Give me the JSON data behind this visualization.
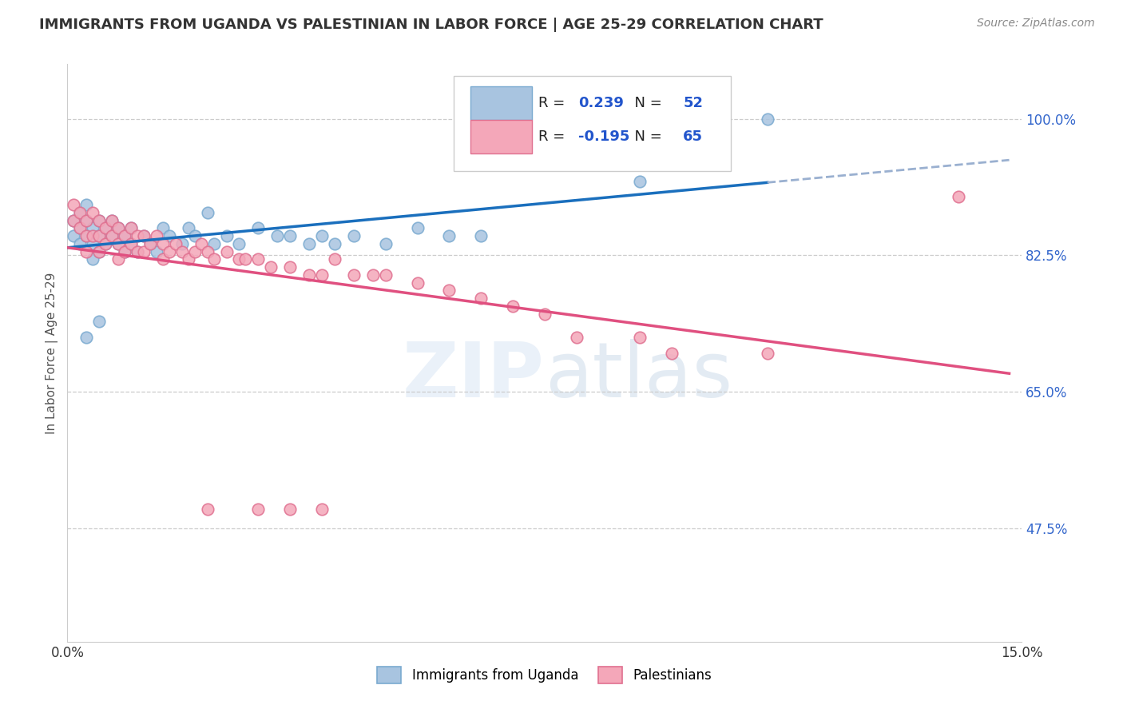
{
  "title": "IMMIGRANTS FROM UGANDA VS PALESTINIAN IN LABOR FORCE | AGE 25-29 CORRELATION CHART",
  "source": "Source: ZipAtlas.com",
  "ylabel": "In Labor Force | Age 25-29",
  "xlim": [
    0.0,
    0.15
  ],
  "ylim": [
    0.33,
    1.07
  ],
  "ytick_positions": [
    0.475,
    0.65,
    0.825,
    1.0
  ],
  "ytick_labels": [
    "47.5%",
    "65.0%",
    "82.5%",
    "100.0%"
  ],
  "R_uganda": 0.239,
  "N_uganda": 52,
  "R_palestinian": -0.195,
  "N_palestinian": 65,
  "color_uganda": "#a8c4e0",
  "color_uganda_edge": "#7aaad0",
  "color_palestinian": "#f4a7b9",
  "color_palestinian_edge": "#e07090",
  "trendline_uganda_color": "#1a6fbd",
  "trendline_palestinian_color": "#e05080",
  "trendline_dashed_color": "#9ab0d0",
  "uganda_x": [
    0.001,
    0.001,
    0.002,
    0.002,
    0.002,
    0.003,
    0.003,
    0.003,
    0.004,
    0.004,
    0.004,
    0.005,
    0.005,
    0.005,
    0.006,
    0.006,
    0.007,
    0.007,
    0.008,
    0.008,
    0.009,
    0.009,
    0.01,
    0.01,
    0.011,
    0.012,
    0.013,
    0.014,
    0.015,
    0.016,
    0.018,
    0.019,
    0.02,
    0.022,
    0.023,
    0.025,
    0.027,
    0.03,
    0.033,
    0.035,
    0.038,
    0.04,
    0.042,
    0.045,
    0.05,
    0.055,
    0.06,
    0.065,
    0.003,
    0.005,
    0.09,
    0.11
  ],
  "uganda_y": [
    0.87,
    0.85,
    0.88,
    0.86,
    0.84,
    0.89,
    0.87,
    0.85,
    0.86,
    0.84,
    0.82,
    0.87,
    0.85,
    0.83,
    0.86,
    0.84,
    0.87,
    0.85,
    0.86,
    0.84,
    0.85,
    0.83,
    0.86,
    0.84,
    0.83,
    0.85,
    0.84,
    0.83,
    0.86,
    0.85,
    0.84,
    0.86,
    0.85,
    0.88,
    0.84,
    0.85,
    0.84,
    0.86,
    0.85,
    0.85,
    0.84,
    0.85,
    0.84,
    0.85,
    0.84,
    0.86,
    0.85,
    0.85,
    0.72,
    0.74,
    0.92,
    1.0
  ],
  "palestinian_x": [
    0.001,
    0.001,
    0.002,
    0.002,
    0.003,
    0.003,
    0.003,
    0.004,
    0.004,
    0.005,
    0.005,
    0.005,
    0.006,
    0.006,
    0.007,
    0.007,
    0.008,
    0.008,
    0.008,
    0.009,
    0.009,
    0.01,
    0.01,
    0.011,
    0.011,
    0.012,
    0.012,
    0.013,
    0.014,
    0.015,
    0.015,
    0.016,
    0.017,
    0.018,
    0.019,
    0.02,
    0.021,
    0.022,
    0.023,
    0.025,
    0.027,
    0.028,
    0.03,
    0.032,
    0.035,
    0.038,
    0.04,
    0.042,
    0.045,
    0.048,
    0.05,
    0.055,
    0.06,
    0.065,
    0.07,
    0.075,
    0.08,
    0.09,
    0.095,
    0.11,
    0.022,
    0.03,
    0.035,
    0.04,
    0.14
  ],
  "palestinian_y": [
    0.89,
    0.87,
    0.88,
    0.86,
    0.87,
    0.85,
    0.83,
    0.88,
    0.85,
    0.87,
    0.85,
    0.83,
    0.86,
    0.84,
    0.87,
    0.85,
    0.86,
    0.84,
    0.82,
    0.85,
    0.83,
    0.86,
    0.84,
    0.85,
    0.83,
    0.85,
    0.83,
    0.84,
    0.85,
    0.84,
    0.82,
    0.83,
    0.84,
    0.83,
    0.82,
    0.83,
    0.84,
    0.83,
    0.82,
    0.83,
    0.82,
    0.82,
    0.82,
    0.81,
    0.81,
    0.8,
    0.8,
    0.82,
    0.8,
    0.8,
    0.8,
    0.79,
    0.78,
    0.77,
    0.76,
    0.75,
    0.72,
    0.72,
    0.7,
    0.7,
    0.5,
    0.5,
    0.5,
    0.5,
    0.9
  ]
}
